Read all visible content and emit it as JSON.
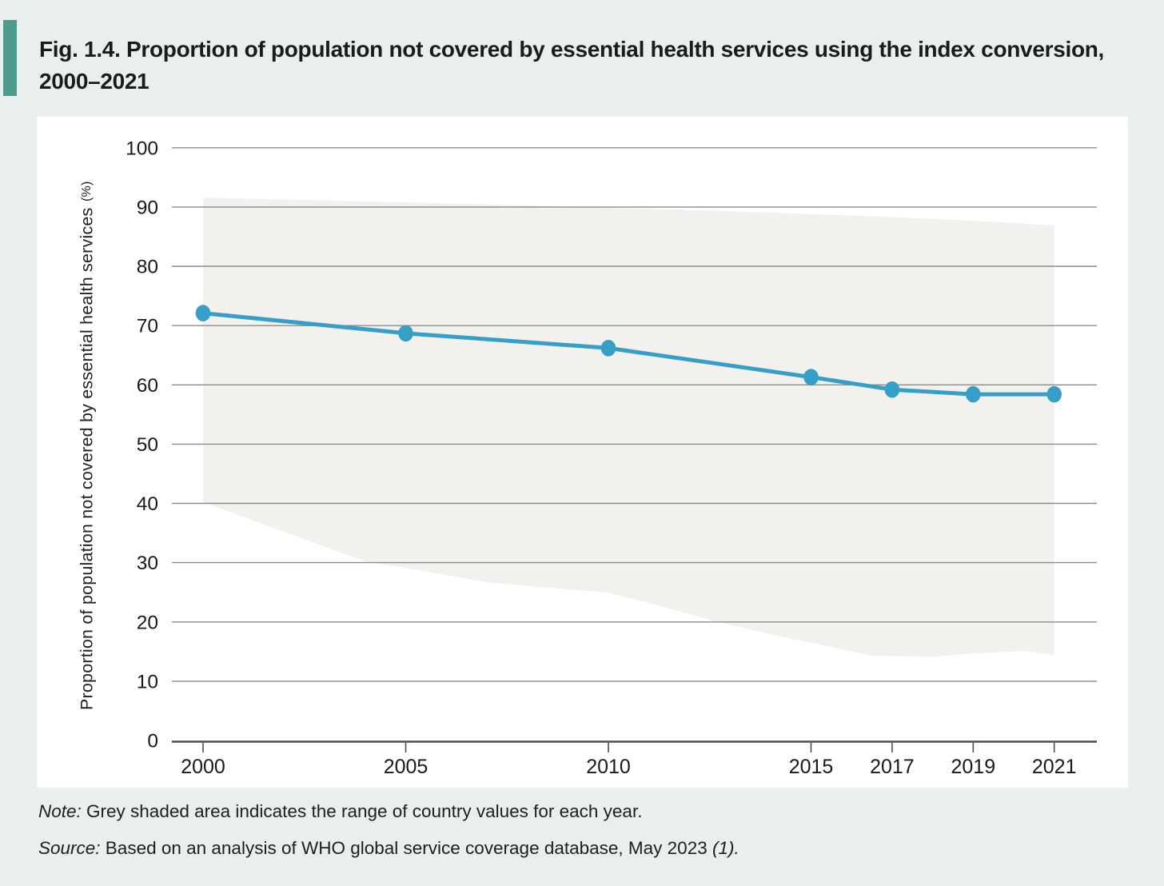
{
  "figure": {
    "title_line1": "Fig. 1.4. Proportion of population not covered by essential health services using the index conversion,",
    "title_line2": "2000–2021",
    "accent_color": "#4f9a8e"
  },
  "chart_data": {
    "type": "line",
    "title": "Fig. 1.4. Proportion of population not covered by essential health services using the index conversion, 2000–2021",
    "x": [
      2000,
      2005,
      2010,
      2015,
      2017,
      2019,
      2021
    ],
    "values": [
      72.1,
      68.7,
      66.2,
      61.3,
      59.2,
      58.4,
      58.4
    ],
    "line_color": "#359fc7",
    "band_range": {
      "description": "Grey shaded area indicates the range of country values for each year",
      "fill": "#f2f1ee",
      "top": [
        [
          2000,
          91.6
        ],
        [
          2005,
          90.8
        ],
        [
          2010,
          89.9
        ],
        [
          2013,
          89.3
        ],
        [
          2015,
          88.8
        ],
        [
          2017,
          88.3
        ],
        [
          2019,
          87.7
        ],
        [
          2021,
          86.9
        ]
      ],
      "bottom": [
        [
          2000,
          40.2
        ],
        [
          2002,
          35.2
        ],
        [
          2004,
          30.2
        ],
        [
          2005,
          29.1
        ],
        [
          2007,
          26.7
        ],
        [
          2010,
          24.9
        ],
        [
          2011,
          23.2
        ],
        [
          2012.7,
          20.0
        ],
        [
          2014,
          17.9
        ],
        [
          2015,
          16.5
        ],
        [
          2016.5,
          14.3
        ],
        [
          2018,
          14.1
        ],
        [
          2019,
          14.7
        ],
        [
          2020.3,
          15.1
        ],
        [
          2021,
          14.4
        ]
      ]
    },
    "xlabel": "",
    "ylabel": "Proportion of population not covered by essential health services",
    "ylabel_unit": "(%)",
    "ylim": [
      0,
      100
    ],
    "yticks": [
      0,
      10,
      20,
      30,
      40,
      50,
      60,
      70,
      80,
      90,
      100
    ],
    "xticks": [
      2000,
      2005,
      2010,
      2015,
      2017,
      2019,
      2021
    ],
    "grid": "horizontal",
    "legend": "none",
    "colors": {
      "grid": "#8b8b8b",
      "axis": "#4c4c4c",
      "panel": "#ffffff",
      "page_background": "#e9efee"
    }
  },
  "note": {
    "prefix": "Note:",
    "text": " Grey shaded area indicates the range of country values for each year."
  },
  "source": {
    "prefix": "Source:",
    "text": " Based on an analysis of WHO global service coverage database, May 2023 ",
    "suffix_italic": "(1)."
  }
}
